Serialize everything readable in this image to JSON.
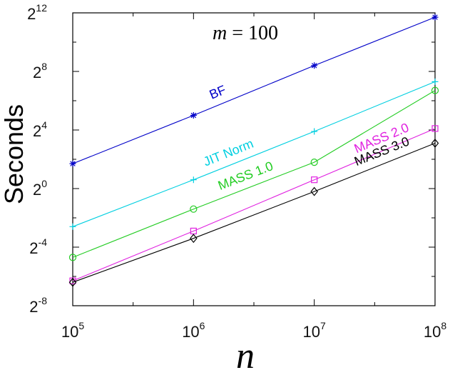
{
  "chart_data": {
    "type": "line",
    "title_var": "m",
    "title_op": "=",
    "title_val": "100",
    "xlabel": "n",
    "ylabel": "Seconds",
    "x_scale": "log2-of-powers-of-ten",
    "y_scale": "log2",
    "x": [
      100000,
      1000000,
      10000000,
      100000000
    ],
    "x_tick_labels": [
      {
        "base": "10",
        "exp": "5"
      },
      {
        "base": "10",
        "exp": "6"
      },
      {
        "base": "10",
        "exp": "7"
      },
      {
        "base": "10",
        "exp": "8"
      }
    ],
    "y_tick_labels": [
      {
        "base": "2",
        "exp": "12"
      },
      {
        "base": "2",
        "exp": "8"
      },
      {
        "base": "2",
        "exp": "4"
      },
      {
        "base": "2",
        "exp": "0"
      },
      {
        "base": "2",
        "exp": "-4"
      },
      {
        "base": "2",
        "exp": "-8"
      }
    ],
    "y_tick_exponents": [
      12,
      8,
      4,
      0,
      -4,
      -8
    ],
    "ylim_exp": [
      -8,
      12
    ],
    "grid": false,
    "series": [
      {
        "name": "BF",
        "color": "#0000c8",
        "marker": "asterisk",
        "log2_values": [
          1.7,
          5.0,
          8.4,
          11.7
        ]
      },
      {
        "name": "JIT Norm",
        "color": "#00cfe0",
        "marker": "plus",
        "log2_values": [
          -2.6,
          0.6,
          3.9,
          7.3
        ]
      },
      {
        "name": "MASS 1.0",
        "color": "#22cc22",
        "marker": "circle",
        "log2_values": [
          -4.7,
          -1.4,
          1.8,
          6.7
        ]
      },
      {
        "name": "MASS 2.0",
        "color": "#e020e0",
        "marker": "square",
        "log2_values": [
          -6.3,
          -2.9,
          0.6,
          4.1
        ]
      },
      {
        "name": "MASS 3.0",
        "color": "#000000",
        "marker": "diamond",
        "log2_values": [
          -6.4,
          -3.4,
          -0.2,
          3.1
        ]
      }
    ]
  }
}
